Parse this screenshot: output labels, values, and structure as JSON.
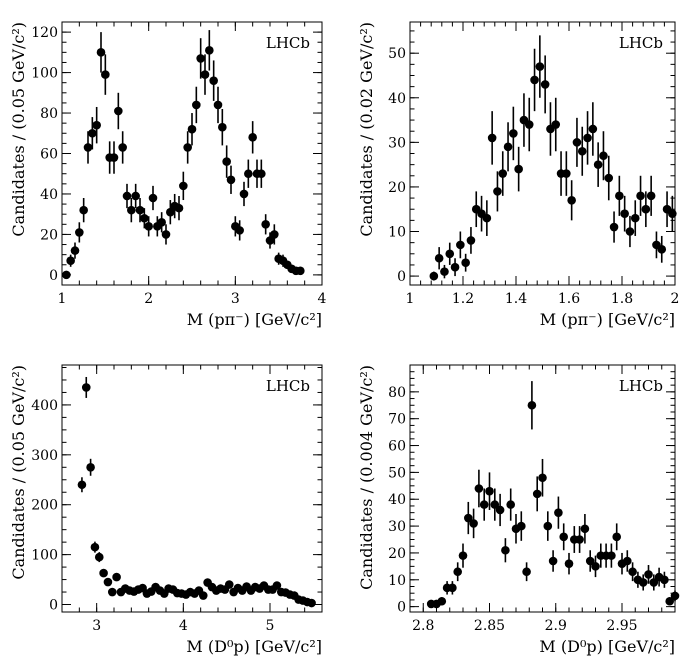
{
  "figure_label": "LHCb invariant mass distributions",
  "chart_data": [
    {
      "type": "scatter",
      "panel": "top-left",
      "title": "",
      "watermark": "LHCb",
      "xlabel": "M (pπ⁻) [GeV/c²]",
      "ylabel": "Candidates / (0.05 GeV/c²)",
      "xlim": [
        1,
        4
      ],
      "ylim": [
        -5,
        125
      ],
      "xticks": [
        1,
        2,
        3,
        4
      ],
      "xtick_labels": [
        "1",
        "2",
        "3",
        "4"
      ],
      "yticks": [
        0,
        20,
        40,
        60,
        80,
        100,
        120
      ],
      "ytick_labels": [
        "0",
        "20",
        "40",
        "60",
        "80",
        100,
        "120"
      ],
      "series": [
        {
          "name": "Data",
          "x": [
            1.05,
            1.1,
            1.15,
            1.2,
            1.25,
            1.3,
            1.35,
            1.4,
            1.45,
            1.5,
            1.55,
            1.6,
            1.65,
            1.7,
            1.75,
            1.8,
            1.85,
            1.9,
            1.95,
            2.0,
            2.05,
            2.1,
            2.15,
            2.2,
            2.25,
            2.3,
            2.35,
            2.4,
            2.45,
            2.5,
            2.55,
            2.6,
            2.65,
            2.7,
            2.75,
            2.8,
            2.85,
            2.9,
            2.95,
            3.0,
            3.05,
            3.1,
            3.15,
            3.2,
            3.25,
            3.3,
            3.35,
            3.4,
            3.45,
            3.5,
            3.55,
            3.6,
            3.65,
            3.7,
            3.75
          ],
          "y": [
            0,
            7,
            12,
            21,
            32,
            63,
            70,
            74,
            110,
            99,
            58,
            58,
            81,
            63,
            39,
            32,
            39,
            32,
            28,
            24,
            38,
            24,
            26,
            20,
            31,
            34,
            33,
            44,
            63,
            72,
            84,
            107,
            99,
            111,
            96,
            84,
            73,
            56,
            47,
            24,
            22,
            40,
            50,
            68,
            50,
            50,
            25,
            17,
            20,
            8,
            7,
            5,
            3,
            2,
            2
          ],
          "err": [
            1,
            3,
            4,
            5,
            6,
            8,
            8,
            9,
            10,
            10,
            8,
            8,
            9,
            8,
            6,
            6,
            6,
            6,
            5,
            5,
            6,
            5,
            5,
            5,
            6,
            6,
            6,
            7,
            8,
            8,
            9,
            10,
            10,
            10,
            10,
            9,
            9,
            8,
            7,
            5,
            5,
            6,
            7,
            8,
            7,
            7,
            5,
            4,
            5,
            3,
            3,
            2,
            2,
            1,
            1
          ]
        }
      ]
    },
    {
      "type": "scatter",
      "panel": "top-right",
      "title": "",
      "watermark": "LHCb",
      "xlabel": "M (pπ⁻) [GeV/c²]",
      "ylabel": "Candidates / (0.02 GeV/c²)",
      "xlim": [
        1,
        2
      ],
      "ylim": [
        -2,
        57
      ],
      "xticks": [
        1,
        1.2,
        1.4,
        1.6,
        1.8,
        2
      ],
      "xtick_labels": [
        "1",
        "1.2",
        "1.4",
        "1.6",
        "1.8",
        "2"
      ],
      "yticks": [
        0,
        10,
        20,
        30,
        40,
        50
      ],
      "ytick_labels": [
        "0",
        "10",
        "20",
        "30",
        "40",
        "50"
      ],
      "series": [
        {
          "name": "Data",
          "x": [
            1.09,
            1.11,
            1.13,
            1.15,
            1.17,
            1.19,
            1.21,
            1.23,
            1.25,
            1.27,
            1.29,
            1.31,
            1.33,
            1.35,
            1.37,
            1.39,
            1.41,
            1.43,
            1.45,
            1.47,
            1.49,
            1.51,
            1.53,
            1.55,
            1.57,
            1.59,
            1.61,
            1.63,
            1.65,
            1.67,
            1.69,
            1.71,
            1.73,
            1.75,
            1.77,
            1.79,
            1.81,
            1.83,
            1.85,
            1.87,
            1.89,
            1.91,
            1.93,
            1.95,
            1.97,
            1.99
          ],
          "y": [
            0,
            4,
            1,
            5,
            2,
            7,
            3,
            8,
            15,
            14,
            13,
            31,
            19,
            23,
            29,
            32,
            24,
            35,
            34,
            44,
            47,
            43,
            33,
            34,
            23,
            23,
            17,
            30,
            28,
            31,
            33,
            25,
            27,
            22,
            11,
            18,
            14,
            10,
            13,
            18,
            15,
            18,
            7,
            6,
            15,
            14
          ],
          "err": [
            1,
            2.5,
            1.5,
            2.5,
            2,
            3,
            2,
            3,
            4,
            4,
            4,
            6,
            4.5,
            5,
            5.5,
            6,
            5,
            6,
            6,
            7,
            7,
            6.5,
            6,
            6,
            5,
            5,
            4.5,
            5.5,
            5.5,
            6,
            6,
            5,
            5.5,
            5,
            3.5,
            4.5,
            4,
            3.5,
            4,
            4.5,
            4,
            4.5,
            3,
            3,
            4,
            4
          ]
        }
      ]
    },
    {
      "type": "scatter",
      "panel": "bottom-left",
      "title": "",
      "watermark": "LHCb",
      "xlabel": "M (D⁰p) [GeV/c²]",
      "ylabel": "Candidates / (0.05 GeV/c²)",
      "xlim": [
        2.6,
        5.6
      ],
      "ylim": [
        -15,
        480
      ],
      "xticks": [
        3,
        4,
        5
      ],
      "xtick_labels": [
        "3",
        "4",
        "5"
      ],
      "yticks": [
        0,
        100,
        200,
        300,
        400
      ],
      "ytick_labels": [
        "0",
        "100",
        "200",
        "300",
        "400"
      ],
      "series": [
        {
          "name": "Data",
          "x": [
            2.83,
            2.88,
            2.93,
            2.98,
            3.03,
            3.08,
            3.13,
            3.18,
            3.23,
            3.28,
            3.33,
            3.38,
            3.43,
            3.48,
            3.53,
            3.58,
            3.63,
            3.68,
            3.73,
            3.78,
            3.83,
            3.88,
            3.93,
            3.98,
            4.03,
            4.08,
            4.13,
            4.18,
            4.23,
            4.28,
            4.33,
            4.38,
            4.43,
            4.48,
            4.53,
            4.58,
            4.63,
            4.68,
            4.73,
            4.78,
            4.83,
            4.88,
            4.93,
            4.98,
            5.03,
            5.08,
            5.13,
            5.18,
            5.23,
            5.28,
            5.33,
            5.38,
            5.43,
            5.48
          ],
          "y": [
            240,
            435,
            275,
            115,
            95,
            63,
            45,
            25,
            55,
            25,
            32,
            28,
            26,
            30,
            33,
            22,
            26,
            35,
            28,
            22,
            32,
            30,
            23,
            22,
            20,
            25,
            22,
            28,
            18,
            44,
            35,
            28,
            32,
            30,
            40,
            25,
            33,
            28,
            36,
            28,
            35,
            32,
            38,
            30,
            30,
            38,
            25,
            24,
            20,
            18,
            10,
            8,
            5,
            3
          ],
          "err": [
            15,
            21,
            17,
            11,
            10,
            8,
            7,
            5,
            7,
            5,
            6,
            5,
            5,
            5,
            6,
            5,
            5,
            6,
            5,
            5,
            6,
            5,
            5,
            5,
            4,
            5,
            5,
            5,
            4,
            7,
            6,
            5,
            6,
            5,
            6,
            5,
            6,
            5,
            6,
            5,
            6,
            6,
            6,
            5,
            5,
            6,
            5,
            5,
            4,
            4,
            3,
            3,
            2,
            2
          ]
        }
      ]
    },
    {
      "type": "scatter",
      "panel": "bottom-right",
      "title": "",
      "watermark": "LHCb",
      "xlabel": "M (D⁰p) [GeV/c²]",
      "ylabel": "Candidates / (0.004 GeV/c²)",
      "xlim": [
        2.79,
        2.99
      ],
      "ylim": [
        -2,
        90
      ],
      "xticks": [
        2.8,
        2.85,
        2.9,
        2.95
      ],
      "xtick_labels": [
        "2.8",
        "2.85",
        "2.9",
        "2.95"
      ],
      "yticks": [
        0,
        10,
        20,
        30,
        40,
        50,
        60,
        70,
        80
      ],
      "ytick_labels": [
        "0",
        "10",
        "20",
        "30",
        "40",
        "50",
        "60",
        "70",
        "80"
      ],
      "series": [
        {
          "name": "Data",
          "x": [
            2.806,
            2.81,
            2.814,
            2.818,
            2.822,
            2.826,
            2.83,
            2.834,
            2.838,
            2.842,
            2.846,
            2.85,
            2.854,
            2.858,
            2.862,
            2.866,
            2.87,
            2.874,
            2.878,
            2.882,
            2.886,
            2.89,
            2.894,
            2.898,
            2.902,
            2.906,
            2.91,
            2.914,
            2.918,
            2.922,
            2.926,
            2.93,
            2.934,
            2.938,
            2.942,
            2.946,
            2.95,
            2.954,
            2.958,
            2.962,
            2.966,
            2.97,
            2.974,
            2.978,
            2.982,
            2.986,
            2.99
          ],
          "y": [
            1,
            1,
            2,
            7,
            7,
            13,
            19,
            33,
            31,
            44,
            38,
            43,
            38,
            36,
            21,
            38,
            29,
            30,
            13,
            75,
            42,
            48,
            30,
            17,
            35,
            26,
            16,
            25,
            25,
            29,
            17,
            15,
            19,
            19,
            19,
            26,
            16,
            17,
            13,
            10,
            9,
            12,
            9,
            11,
            10,
            2,
            4
          ],
          "err": [
            1,
            1,
            1.5,
            2.5,
            2.5,
            3.5,
            4.5,
            6,
            5.5,
            7,
            6,
            7,
            6,
            6,
            4.5,
            6,
            5.5,
            5.5,
            3.5,
            9,
            6.5,
            7,
            5.5,
            4,
            6,
            5,
            4,
            5,
            5,
            5.5,
            4,
            4,
            4.5,
            4.5,
            4.5,
            5,
            4,
            4,
            3.5,
            3,
            3,
            3.5,
            3,
            3.5,
            3,
            1.5,
            2
          ]
        }
      ]
    }
  ]
}
